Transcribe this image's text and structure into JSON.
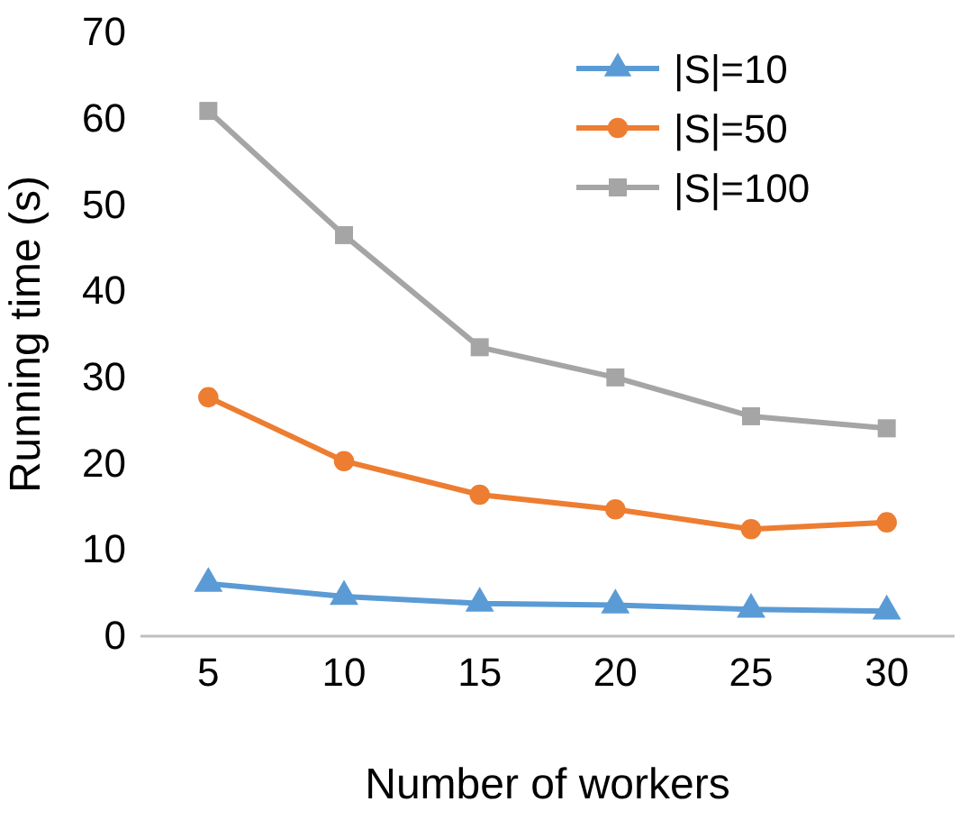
{
  "chart_data": {
    "type": "line",
    "xlabel": "Number of workers",
    "ylabel": "Running time (s)",
    "categories": [
      "5",
      "10",
      "15",
      "20",
      "25",
      "30"
    ],
    "ylim": [
      0,
      70
    ],
    "yticks": [
      0,
      10,
      20,
      30,
      40,
      50,
      60,
      70
    ],
    "grid": false,
    "legend": "top right",
    "line_style": "solid",
    "series": [
      {
        "name": "|S|=10",
        "color": "#5b9bd5",
        "marker": "triangle",
        "values": [
          6.1,
          4.6,
          3.8,
          3.6,
          3.1,
          2.9
        ]
      },
      {
        "name": "|S|=50",
        "color": "#ed7d31",
        "marker": "circle",
        "values": [
          27.7,
          20.3,
          16.4,
          14.7,
          12.4,
          13.2
        ]
      },
      {
        "name": "|S|=100",
        "color": "#a5a5a5",
        "marker": "square",
        "values": [
          60.9,
          46.5,
          33.5,
          30.0,
          25.5,
          24.1
        ]
      }
    ]
  }
}
